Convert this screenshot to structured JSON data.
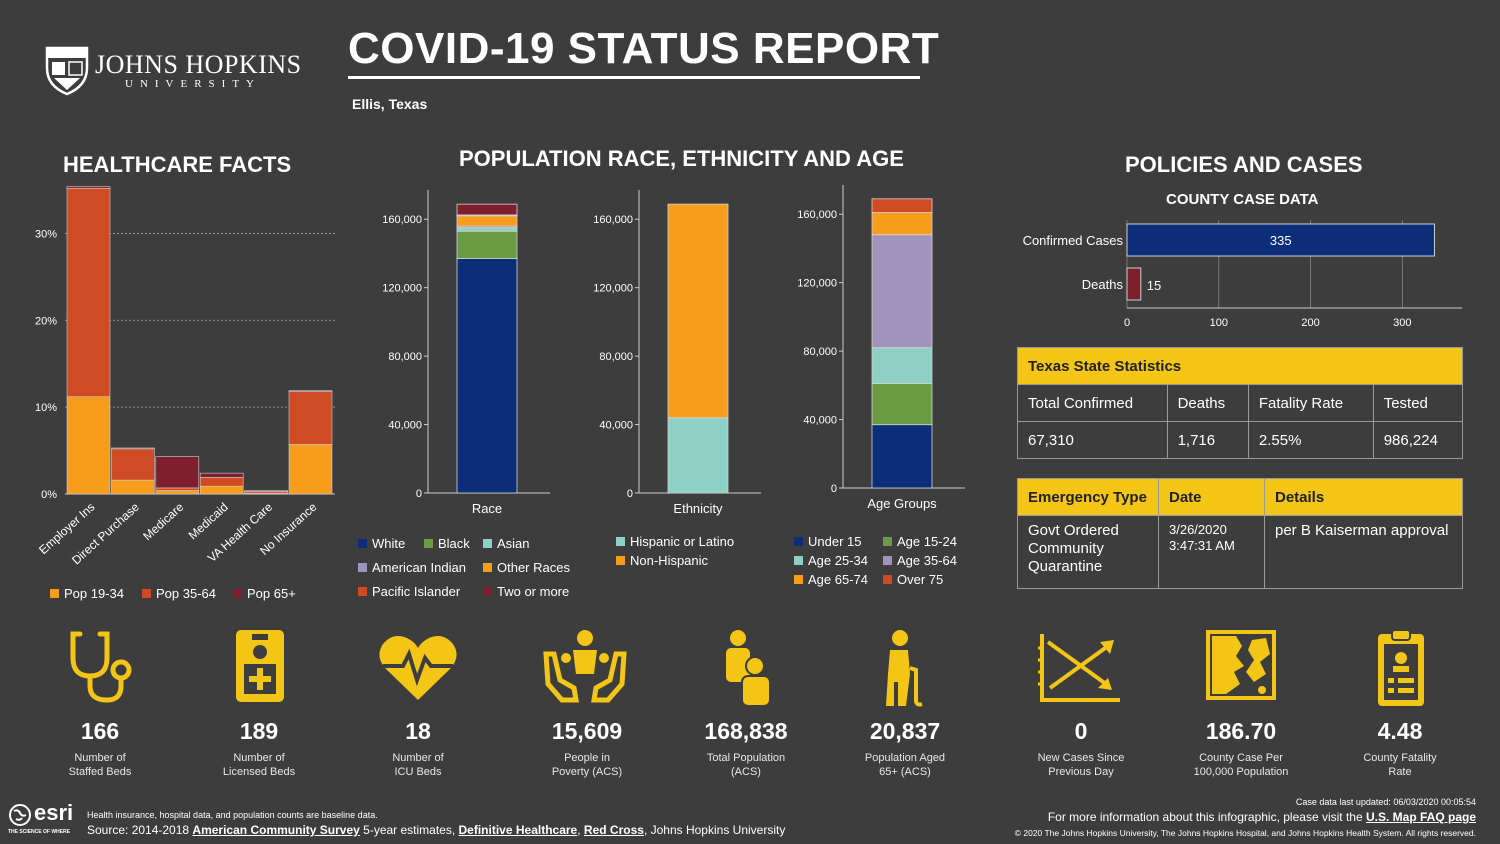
{
  "header": {
    "university_name": "JOHNS HOPKINS",
    "university_sub": "UNIVERSITY",
    "title": "COVID-19 STATUS REPORT",
    "location": "Ellis, Texas"
  },
  "sections": {
    "healthcare": "HEALTHCARE FACTS",
    "population": "POPULATION RACE, ETHNICITY AND AGE",
    "policies": "POLICIES AND CASES",
    "county_case": "COUNTY CASE DATA"
  },
  "colors": {
    "pop19": "#f89c1c",
    "pop35": "#d04a23",
    "pop65": "#7e1f2e",
    "white": "#0b2d7a",
    "black": "#6b9b43",
    "asian": "#8fd0c4",
    "amind": "#a193bb",
    "other": "#f89c1c",
    "pacific": "#d04a23",
    "two": "#7e1f2e",
    "yellow": "#f2c517",
    "navy": "#0b2d7a"
  },
  "chart_data": [
    {
      "type": "bar",
      "name": "healthcare",
      "categories": [
        "Employer Ins",
        "Direct Purchase",
        "Medicare",
        "Medicaid",
        "VA Health Care",
        "No Insurance"
      ],
      "series": [
        {
          "name": "Pop 19-34",
          "values": [
            11.2,
            1.6,
            0.4,
            0.9,
            0.1,
            5.7
          ]
        },
        {
          "name": "Pop 35-64",
          "values": [
            24.0,
            3.6,
            0.3,
            1.0,
            0.2,
            6.1
          ]
        },
        {
          "name": "Pop 65+",
          "values": [
            0.2,
            0.1,
            3.6,
            0.5,
            0.1,
            0.1
          ]
        }
      ],
      "yticks": [
        "0%",
        "10%",
        "20%",
        "30%"
      ],
      "ylim": [
        0,
        35
      ]
    },
    {
      "type": "bar",
      "name": "race",
      "categories": [
        "Race"
      ],
      "series": [
        {
          "name": "White",
          "values": [
            137000
          ]
        },
        {
          "name": "Black",
          "values": [
            16000
          ]
        },
        {
          "name": "Asian",
          "values": [
            2000
          ]
        },
        {
          "name": "American Indian",
          "values": [
            1000
          ]
        },
        {
          "name": "Other Races",
          "values": [
            6000
          ]
        },
        {
          "name": "Pacific Islander",
          "values": [
            500
          ]
        },
        {
          "name": "Two or more",
          "values": [
            6300
          ]
        }
      ],
      "yticks": [
        "0",
        "40,000",
        "80,000",
        "120,000",
        "160,000"
      ],
      "ylim": [
        0,
        180000
      ]
    },
    {
      "type": "bar",
      "name": "ethnicity",
      "categories": [
        "Ethnicity"
      ],
      "series": [
        {
          "name": "Hispanic or Latino",
          "values": [
            44000
          ]
        },
        {
          "name": "Non-Hispanic",
          "values": [
            124838
          ]
        }
      ],
      "yticks": [
        "0",
        "40,000",
        "80,000",
        "120,000",
        "160,000"
      ],
      "ylim": [
        0,
        180000
      ]
    },
    {
      "type": "bar",
      "name": "age",
      "categories": [
        "Age Groups"
      ],
      "series": [
        {
          "name": "Under 15",
          "values": [
            37000
          ]
        },
        {
          "name": "Age 15-24",
          "values": [
            24000
          ]
        },
        {
          "name": "Age 25-34",
          "values": [
            21000
          ]
        },
        {
          "name": "Age 35-64",
          "values": [
            66000
          ]
        },
        {
          "name": "Age 65-74",
          "values": [
            13000
          ]
        },
        {
          "name": "Over 75",
          "values": [
            8000
          ]
        }
      ],
      "yticks": [
        "0",
        "40,000",
        "80,000",
        "120,000",
        "160,000"
      ],
      "ylim": [
        0,
        180000
      ]
    },
    {
      "type": "bar",
      "name": "county_case",
      "orientation": "horizontal",
      "categories": [
        "Confirmed Cases",
        "Deaths"
      ],
      "values": [
        335,
        15
      ],
      "xticks": [
        "0",
        "100",
        "200",
        "300"
      ],
      "xlim": [
        0,
        365
      ]
    }
  ],
  "legends": {
    "healthcare": [
      "Pop 19-34",
      "Pop 35-64",
      "Pop 65+"
    ],
    "race": [
      "White",
      "Black",
      "Asian",
      "American Indian",
      "Other Races",
      "Pacific Islander",
      "Two or more"
    ],
    "ethnicity": [
      "Hispanic or Latino",
      "Non-Hispanic"
    ],
    "age": [
      "Under 15",
      "Age 15-24",
      "Age 25-34",
      "Age 35-64",
      "Age 65-74",
      "Over 75"
    ]
  },
  "state_stats": {
    "title": "Texas State Statistics",
    "headers": [
      "Total Confirmed",
      "Deaths",
      "Fatality Rate",
      "Tested"
    ],
    "values": [
      "67,310",
      "1,716",
      "2.55%",
      "986,224"
    ]
  },
  "emergency": {
    "headers": [
      "Emergency Type",
      "Date",
      "Details"
    ],
    "type": "Govt Ordered Community Quarantine",
    "date": "3/26/2020 3:47:31 AM",
    "details": "per B Kaiserman approval"
  },
  "kpis": [
    {
      "icon": "stethoscope-icon",
      "value": "166",
      "label1": "Number of",
      "label2": "Staffed Beds"
    },
    {
      "icon": "hospital-badge-icon",
      "value": "189",
      "label1": "Number of",
      "label2": "Licensed Beds"
    },
    {
      "icon": "heartbeat-icon",
      "value": "18",
      "label1": "Number of",
      "label2": "ICU Beds"
    },
    {
      "icon": "hands-people-icon",
      "value": "15,609",
      "label1": "People in",
      "label2": "Poverty (ACS)"
    },
    {
      "icon": "family-icon",
      "value": "168,838",
      "label1": "Total Population",
      "label2": "(ACS)"
    },
    {
      "icon": "elderly-person-icon",
      "value": "20,837",
      "label1": "Population Aged",
      "label2": "65+ (ACS)"
    },
    {
      "icon": "trend-chart-icon",
      "value": "0",
      "label1": "New Cases Since",
      "label2": "Previous Day"
    },
    {
      "icon": "county-map-icon",
      "value": "186.70",
      "label1": "County Case Per",
      "label2": "100,000 Population"
    },
    {
      "icon": "clipboard-icon",
      "value": "4.48",
      "label1": "County Fatality",
      "label2": "Rate"
    }
  ],
  "footer": {
    "esri": "esri",
    "esri_tag": "THE SCIENCE OF WHERE",
    "note": "Health insurance, hospital data, and population counts are baseline data.",
    "source_prefix": "Source: 2014-2018 ",
    "source_link1": "American Community Survey",
    "source_mid1": " 5-year estimates, ",
    "source_link2": "Definitive Healthcare",
    "source_mid2": ", ",
    "source_link3": "Red Cross",
    "source_suffix": ", Johns Hopkins University",
    "updated": "Case data last updated: 06/03/2020 00:05:54",
    "more_prefix": "For more information about this infographic, please visit the ",
    "more_link": "U.S. Map FAQ page",
    "copyright": "© 2020 The Johns Hopkins University, The Johns Hopkins Hospital, and Johns Hopkins Health System. All rights reserved."
  }
}
